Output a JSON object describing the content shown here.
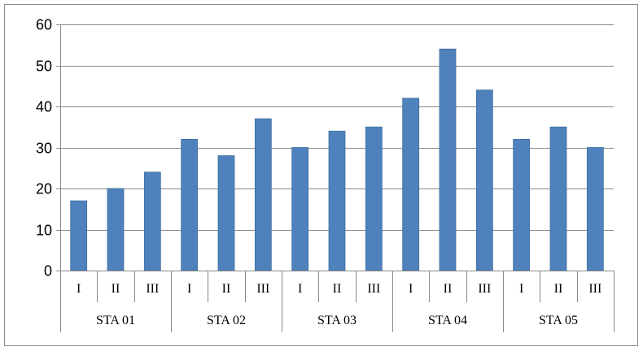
{
  "chart_data": {
    "type": "bar",
    "title": "",
    "xlabel": "",
    "ylabel": "",
    "ylim": [
      0,
      60
    ],
    "yticks": [
      "0",
      "10",
      "20",
      "30",
      "40",
      "50",
      "60"
    ],
    "grid": true,
    "legend": "none",
    "groups": [
      {
        "label": "STA 01",
        "categories": [
          "I",
          "II",
          "III"
        ],
        "values": [
          17,
          20,
          24
        ]
      },
      {
        "label": "STA 02",
        "categories": [
          "I",
          "II",
          "III"
        ],
        "values": [
          32,
          28,
          37
        ]
      },
      {
        "label": "STA 03",
        "categories": [
          "I",
          "II",
          "III"
        ],
        "values": [
          30,
          34,
          35
        ]
      },
      {
        "label": "STA 04",
        "categories": [
          "I",
          "II",
          "III"
        ],
        "values": [
          42,
          54,
          44
        ]
      },
      {
        "label": "STA 05",
        "categories": [
          "I",
          "II",
          "III"
        ],
        "values": [
          32,
          35,
          30
        ]
      }
    ],
    "colors": {
      "bar": "#4f81bd",
      "bar_edge": "#41709e",
      "grid": "#8a8a8a"
    }
  }
}
